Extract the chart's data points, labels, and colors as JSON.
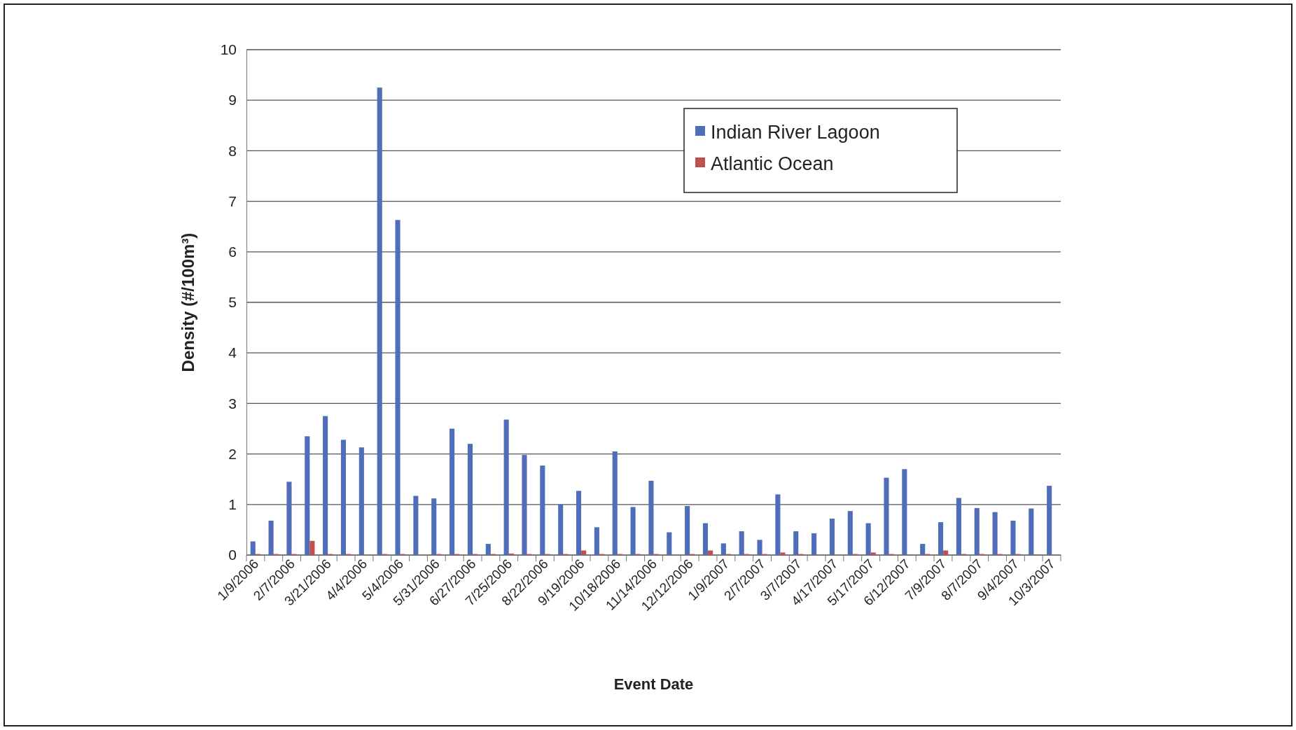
{
  "chart_data": {
    "type": "bar",
    "xlabel": "Event Date",
    "ylabel": "Density (#/100m³)",
    "categories": [
      "1/9/2006",
      null,
      "2/7/2006",
      null,
      "3/21/2006",
      null,
      "4/4/2006",
      null,
      "5/4/2006",
      null,
      "5/31/2006",
      null,
      "6/27/2006",
      null,
      "7/25/2006",
      null,
      "8/22/2006",
      null,
      "9/19/2006",
      null,
      "10/18/2006",
      null,
      "11/14/2006",
      null,
      "12/12/2006",
      null,
      "1/9/2007",
      null,
      "2/7/2007",
      null,
      "3/7/2007",
      null,
      "4/17/2007",
      null,
      "5/17/2007",
      null,
      "6/12/2007",
      null,
      "7/9/2007",
      null,
      "8/7/2007",
      null,
      "9/4/2007",
      null,
      "10/3/2007"
    ],
    "series": [
      {
        "name": "Indian River Lagoon",
        "color": "#4f6db8",
        "values": [
          0.27,
          0.68,
          1.45,
          2.35,
          2.75,
          2.28,
          2.13,
          9.25,
          6.63,
          1.17,
          1.12,
          2.5,
          2.2,
          0.22,
          2.68,
          1.98,
          1.77,
          1.0,
          1.27,
          0.55,
          2.05,
          0.95,
          1.47,
          0.45,
          0.97,
          0.63,
          0.23,
          0.47,
          0.3,
          1.2,
          0.47,
          0.43,
          0.72,
          0.87,
          0.63,
          1.53,
          1.7,
          0.22,
          0.65,
          1.13,
          0.93,
          0.85,
          0.68,
          0.92,
          1.37
        ]
      },
      {
        "name": "Atlantic Ocean",
        "color": "#c0504d",
        "values": [
          0.02,
          0.02,
          0.02,
          0.28,
          0.02,
          0.02,
          0,
          0.02,
          0.02,
          0,
          0.02,
          0.02,
          0.02,
          0.02,
          0.03,
          0.02,
          0.02,
          0.02,
          0.09,
          0.02,
          0.02,
          0.02,
          0.02,
          0,
          0.02,
          0.09,
          0.02,
          0.02,
          0.02,
          0.05,
          0.02,
          0,
          0,
          0.02,
          0.05,
          0.02,
          0.01,
          0.02,
          0.09,
          0.02,
          0.02,
          0.02,
          0.02,
          0.01,
          0
        ]
      }
    ],
    "ylim": [
      0,
      10
    ],
    "yticks": [
      0,
      1,
      2,
      3,
      4,
      5,
      6,
      7,
      8,
      9,
      10
    ],
    "grid": "y",
    "legend": "top right"
  }
}
